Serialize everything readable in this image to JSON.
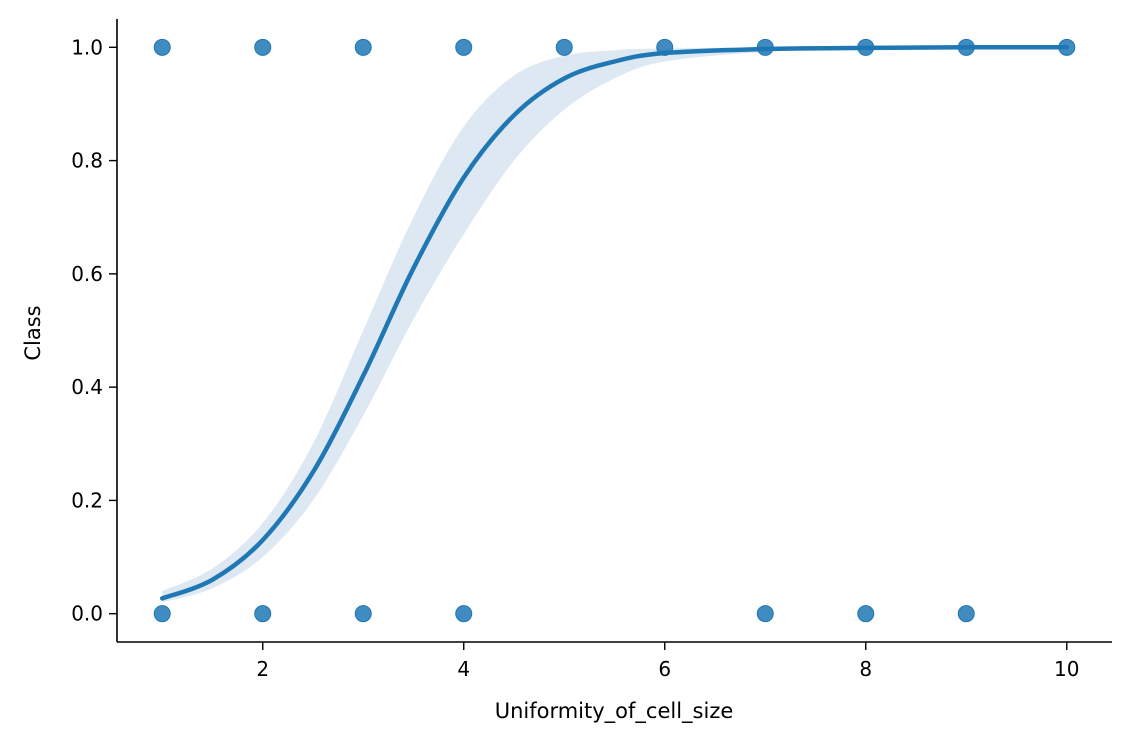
{
  "chart_data": {
    "type": "scatter",
    "title": "",
    "xlabel": "Uniformity_of_cell_size",
    "ylabel": "Class",
    "xlim": [
      0.55,
      10.45
    ],
    "ylim": [
      -0.05,
      1.05
    ],
    "xticks": [
      2,
      4,
      6,
      8,
      10
    ],
    "xtick_labels": [
      "2",
      "4",
      "6",
      "8",
      "10"
    ],
    "yticks": [
      0.0,
      0.2,
      0.4,
      0.6,
      0.8,
      1.0
    ],
    "ytick_labels": [
      "0.0",
      "0.2",
      "0.4",
      "0.6",
      "0.8",
      "1.0"
    ],
    "grid": false,
    "legend": "none",
    "color": "#1f77b4",
    "band_color": "#dde8f3",
    "points": [
      {
        "x": 1,
        "y": 0
      },
      {
        "x": 1,
        "y": 1
      },
      {
        "x": 2,
        "y": 0
      },
      {
        "x": 2,
        "y": 1
      },
      {
        "x": 3,
        "y": 0
      },
      {
        "x": 3,
        "y": 1
      },
      {
        "x": 4,
        "y": 0
      },
      {
        "x": 4,
        "y": 1
      },
      {
        "x": 5,
        "y": 1
      },
      {
        "x": 6,
        "y": 1
      },
      {
        "x": 7,
        "y": 0
      },
      {
        "x": 7,
        "y": 1
      },
      {
        "x": 8,
        "y": 0
      },
      {
        "x": 8,
        "y": 1
      },
      {
        "x": 9,
        "y": 0
      },
      {
        "x": 9,
        "y": 1
      },
      {
        "x": 10,
        "y": 1
      }
    ],
    "fit": {
      "x": [
        1,
        1.5,
        2,
        2.5,
        3,
        3.5,
        4,
        4.5,
        5,
        5.5,
        6,
        7,
        8,
        9,
        10
      ],
      "y": [
        0.027,
        0.06,
        0.13,
        0.25,
        0.42,
        0.61,
        0.77,
        0.88,
        0.945,
        0.975,
        0.99,
        0.997,
        0.999,
        1.0,
        1.0
      ],
      "ci_lower": [
        0.02,
        0.045,
        0.1,
        0.2,
        0.35,
        0.52,
        0.67,
        0.8,
        0.89,
        0.945,
        0.975,
        0.992,
        0.998,
        1.0,
        1.0
      ],
      "ci_upper": [
        0.04,
        0.08,
        0.16,
        0.3,
        0.5,
        0.7,
        0.86,
        0.95,
        0.985,
        0.995,
        0.998,
        1.0,
        1.0,
        1.0,
        1.0
      ]
    }
  }
}
